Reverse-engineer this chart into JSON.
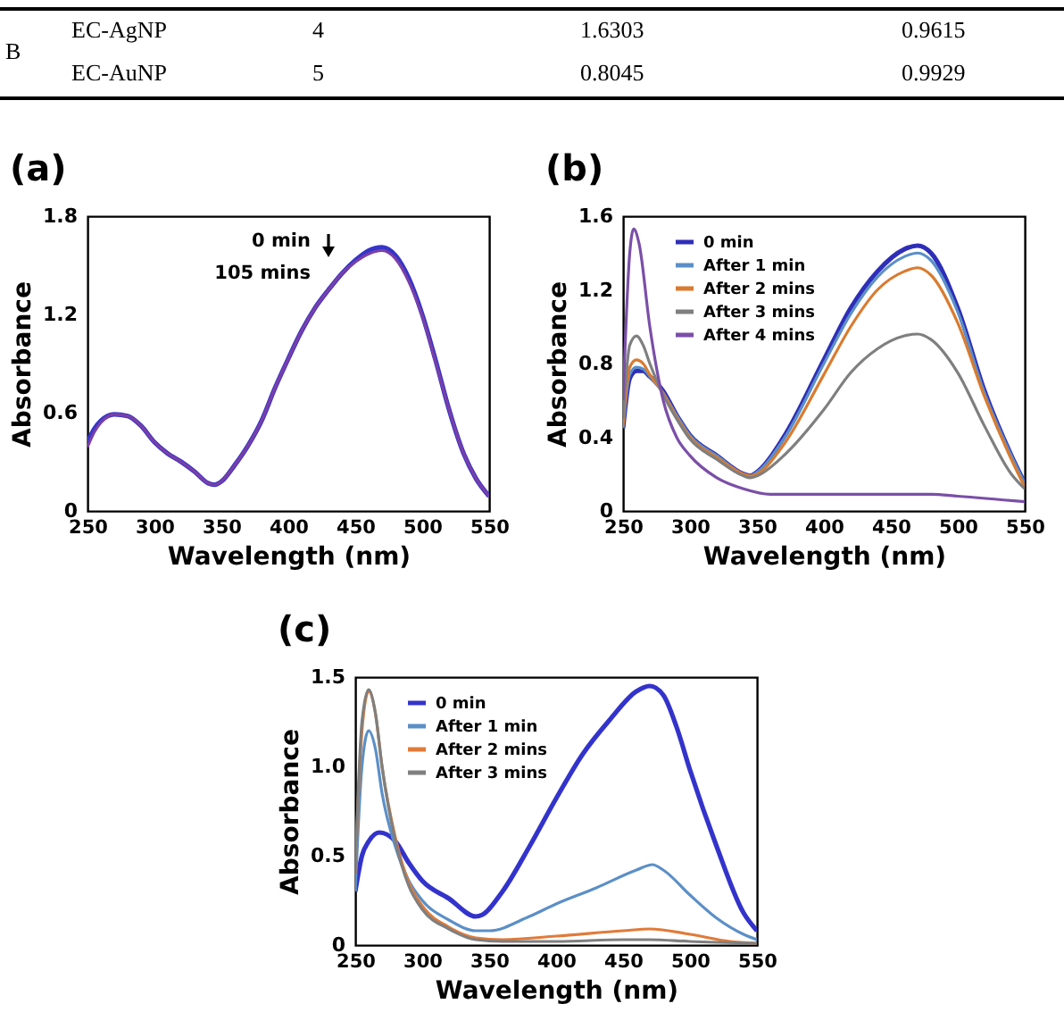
{
  "chart_data": [
    {
      "type": "other",
      "annotations": [
        "B",
        "EC-AgNP",
        "4",
        "1.6303",
        "0.9615",
        "EC-AuNP",
        "5",
        "0.8045",
        "0.9929"
      ]
    },
    {
      "type": "line",
      "title": "(a)",
      "xlabel": "Wavelength (nm)",
      "ylabel": "Absorbance",
      "xlim": [
        250,
        550
      ],
      "xticks": [
        250,
        300,
        350,
        400,
        450,
        500,
        550
      ],
      "ylim": [
        0,
        1.8
      ],
      "yticks": [
        0,
        0.6,
        1.2,
        1.8
      ],
      "series": [
        {
          "name": "0 min",
          "color": "#3535c8",
          "x": [
            250,
            255,
            260,
            270,
            280,
            290,
            300,
            310,
            320,
            330,
            340,
            345,
            350,
            360,
            370,
            380,
            390,
            400,
            410,
            420,
            430,
            440,
            450,
            460,
            470,
            480,
            490,
            500,
            510,
            520,
            530,
            540,
            550
          ],
          "values": [
            0.42,
            0.5,
            0.55,
            0.59,
            0.58,
            0.52,
            0.42,
            0.35,
            0.3,
            0.24,
            0.17,
            0.16,
            0.18,
            0.28,
            0.4,
            0.55,
            0.75,
            0.93,
            1.1,
            1.24,
            1.35,
            1.45,
            1.53,
            1.59,
            1.61,
            1.56,
            1.42,
            1.2,
            0.92,
            0.62,
            0.37,
            0.2,
            0.09
          ]
        },
        {
          "name": "105 mins",
          "color": "#7a3fa8",
          "x": [
            250,
            255,
            260,
            270,
            280,
            290,
            300,
            310,
            320,
            330,
            340,
            345,
            350,
            360,
            370,
            380,
            390,
            400,
            410,
            420,
            430,
            440,
            450,
            460,
            470,
            480,
            490,
            500,
            510,
            520,
            530,
            540,
            550
          ],
          "values": [
            0.39,
            0.48,
            0.54,
            0.59,
            0.58,
            0.52,
            0.42,
            0.35,
            0.3,
            0.24,
            0.17,
            0.16,
            0.18,
            0.28,
            0.4,
            0.55,
            0.75,
            0.93,
            1.1,
            1.24,
            1.35,
            1.45,
            1.52,
            1.57,
            1.59,
            1.54,
            1.4,
            1.19,
            0.91,
            0.62,
            0.37,
            0.2,
            0.09
          ]
        }
      ]
    },
    {
      "type": "line",
      "title": "(b)",
      "xlabel": "Wavelength (nm)",
      "ylabel": "Absorbance",
      "xlim": [
        250,
        550
      ],
      "xticks": [
        250,
        300,
        350,
        400,
        450,
        500,
        550
      ],
      "ylim": [
        0,
        1.6
      ],
      "yticks": [
        0,
        0.4,
        0.8,
        1.2,
        1.6
      ],
      "legend": "top left",
      "series": [
        {
          "name": "0 min",
          "color": "#2e2eb8",
          "x": [
            250,
            255,
            260,
            265,
            270,
            280,
            290,
            300,
            320,
            340,
            345,
            350,
            370,
            400,
            420,
            440,
            460,
            470,
            480,
            500,
            520,
            540,
            550
          ],
          "values": [
            0.45,
            0.72,
            0.76,
            0.76,
            0.73,
            0.65,
            0.52,
            0.41,
            0.3,
            0.2,
            0.19,
            0.21,
            0.4,
            0.82,
            1.1,
            1.3,
            1.42,
            1.44,
            1.4,
            1.1,
            0.65,
            0.3,
            0.15
          ]
        },
        {
          "name": "After 1 min",
          "color": "#5b8fc7",
          "x": [
            250,
            255,
            260,
            265,
            270,
            280,
            290,
            300,
            320,
            340,
            345,
            350,
            370,
            400,
            420,
            440,
            460,
            470,
            480,
            500,
            520,
            540,
            550
          ],
          "values": [
            0.45,
            0.74,
            0.78,
            0.77,
            0.73,
            0.64,
            0.52,
            0.41,
            0.3,
            0.2,
            0.19,
            0.21,
            0.39,
            0.8,
            1.07,
            1.27,
            1.38,
            1.4,
            1.36,
            1.08,
            0.64,
            0.3,
            0.15
          ]
        },
        {
          "name": "After 2 mins",
          "color": "#d97b30",
          "x": [
            250,
            255,
            260,
            265,
            270,
            280,
            290,
            300,
            320,
            340,
            345,
            350,
            370,
            400,
            420,
            440,
            460,
            470,
            480,
            500,
            520,
            540,
            550
          ],
          "values": [
            0.46,
            0.78,
            0.82,
            0.8,
            0.74,
            0.64,
            0.51,
            0.4,
            0.29,
            0.2,
            0.19,
            0.2,
            0.36,
            0.74,
            1.0,
            1.2,
            1.3,
            1.32,
            1.28,
            1.02,
            0.62,
            0.28,
            0.13
          ]
        },
        {
          "name": "After 3 mins",
          "color": "#7f7f7f",
          "x": [
            250,
            255,
            260,
            265,
            270,
            280,
            290,
            300,
            320,
            340,
            345,
            350,
            370,
            400,
            420,
            440,
            460,
            470,
            480,
            500,
            520,
            540,
            550
          ],
          "values": [
            0.5,
            0.9,
            0.95,
            0.9,
            0.8,
            0.63,
            0.5,
            0.39,
            0.28,
            0.19,
            0.18,
            0.19,
            0.3,
            0.55,
            0.75,
            0.88,
            0.95,
            0.96,
            0.93,
            0.75,
            0.46,
            0.2,
            0.12
          ]
        },
        {
          "name": "After 4 mins",
          "color": "#7a4fa8",
          "x": [
            250,
            255,
            258,
            262,
            270,
            280,
            290,
            300,
            320,
            340,
            360,
            400,
            450,
            480,
            500,
            550
          ],
          "values": [
            0.6,
            1.4,
            1.53,
            1.45,
            1.0,
            0.6,
            0.4,
            0.3,
            0.18,
            0.12,
            0.09,
            0.09,
            0.09,
            0.09,
            0.08,
            0.05
          ]
        }
      ]
    },
    {
      "type": "line",
      "title": "(c)",
      "xlabel": "Wavelength (nm)",
      "ylabel": "Absorbance",
      "xlim": [
        250,
        550
      ],
      "xticks": [
        250,
        300,
        350,
        400,
        450,
        500,
        550
      ],
      "ylim": [
        0,
        1.5
      ],
      "yticks": [
        0,
        0.5,
        {
          "value": 1,
          "label": "1.0"
        },
        1.5
      ],
      "legend": "top left",
      "series": [
        {
          "name": "0 min",
          "color": "#3333cc",
          "x": [
            250,
            255,
            260,
            268,
            280,
            290,
            300,
            320,
            340,
            345,
            360,
            380,
            400,
            420,
            440,
            460,
            470,
            480,
            490,
            500,
            520,
            540,
            550
          ],
          "values": [
            0.3,
            0.5,
            0.58,
            0.63,
            0.58,
            0.46,
            0.36,
            0.26,
            0.16,
            0.17,
            0.3,
            0.55,
            0.82,
            1.07,
            1.26,
            1.42,
            1.45,
            1.4,
            1.22,
            0.98,
            0.55,
            0.18,
            0.08
          ]
        },
        {
          "name": "After 1 min",
          "color": "#5b8fc7",
          "x": [
            250,
            255,
            260,
            265,
            270,
            280,
            290,
            300,
            320,
            340,
            350,
            380,
            400,
            430,
            460,
            472,
            480,
            500,
            520,
            540,
            550
          ],
          "values": [
            0.3,
            1.0,
            1.2,
            1.1,
            0.85,
            0.55,
            0.36,
            0.25,
            0.14,
            0.08,
            0.08,
            0.16,
            0.23,
            0.32,
            0.42,
            0.45,
            0.42,
            0.28,
            0.15,
            0.06,
            0.03
          ]
        },
        {
          "name": "After 2 mins",
          "color": "#e07b39",
          "x": [
            250,
            255,
            260,
            265,
            270,
            280,
            290,
            300,
            320,
            340,
            360,
            400,
            450,
            470,
            500,
            530,
            550
          ],
          "values": [
            0.4,
            1.2,
            1.42,
            1.3,
            1.0,
            0.6,
            0.35,
            0.22,
            0.1,
            0.04,
            0.03,
            0.05,
            0.08,
            0.09,
            0.06,
            0.02,
            0.01
          ]
        },
        {
          "name": "After 3 mins",
          "color": "#7f7f7f",
          "x": [
            250,
            255,
            260,
            265,
            270,
            280,
            290,
            300,
            320,
            340,
            360,
            400,
            450,
            470,
            500,
            550
          ],
          "values": [
            0.4,
            1.25,
            1.43,
            1.3,
            1.0,
            0.58,
            0.33,
            0.2,
            0.09,
            0.03,
            0.02,
            0.02,
            0.03,
            0.03,
            0.02,
            0.01
          ]
        }
      ]
    }
  ]
}
